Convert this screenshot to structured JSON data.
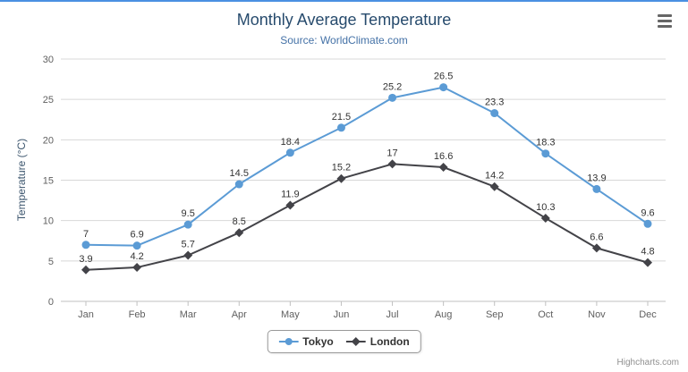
{
  "page": {
    "top_bar_color": "#4a90e2"
  },
  "chart_data": {
    "type": "line",
    "title": "Monthly Average Temperature",
    "subtitle": "Source: WorldClimate.com",
    "xlabel": "",
    "ylabel": "Temperature (°C)",
    "categories": [
      "Jan",
      "Feb",
      "Mar",
      "Apr",
      "May",
      "Jun",
      "Jul",
      "Aug",
      "Sep",
      "Oct",
      "Nov",
      "Dec"
    ],
    "series": [
      {
        "name": "Tokyo",
        "color": "#5b9bd5",
        "marker": "circle",
        "values": [
          7,
          6.9,
          9.5,
          14.5,
          18.4,
          21.5,
          25.2,
          26.5,
          23.3,
          18.3,
          13.9,
          9.6
        ]
      },
      {
        "name": "London",
        "color": "#434348",
        "marker": "diamond",
        "values": [
          3.9,
          4.2,
          5.7,
          8.5,
          11.9,
          15.2,
          17,
          16.6,
          14.2,
          10.3,
          6.6,
          4.8
        ]
      }
    ],
    "ylim": [
      0,
      30
    ],
    "yticks": [
      0,
      5,
      10,
      15,
      20,
      25,
      30
    ],
    "grid": true,
    "legend_position": "bottom",
    "colors": {
      "title": "#274b6d",
      "subtitle": "#4572a7",
      "ylabel": "#3e576f",
      "grid": "#d8d8d8",
      "axis_line": "#c0c0c0",
      "axis_labels": "#606060",
      "data_labels": "#333333"
    }
  },
  "icons": {
    "export_menu": "hamburger"
  },
  "credits": {
    "text": "Highcharts.com"
  }
}
